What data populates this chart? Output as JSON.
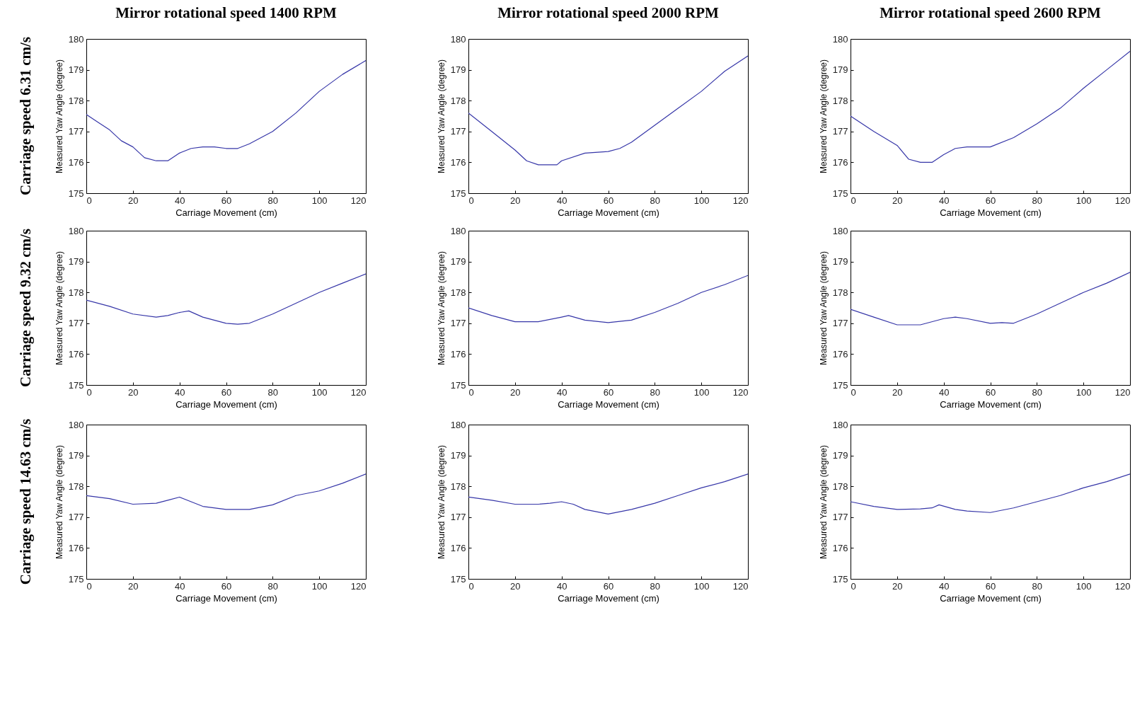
{
  "chart_data": [
    {
      "type": "line",
      "title": "Mirror rotational speed 1400 RPM",
      "annotations": [
        "Carriage speed 6.31 cm/s"
      ],
      "xlabel": "Carriage Movement (cm)",
      "ylabel": "Measured Yaw Angle (degree)",
      "xlim": [
        0,
        120
      ],
      "xticks": [
        0,
        20,
        40,
        60,
        80,
        100,
        120
      ],
      "ylim": [
        175,
        180
      ],
      "yticks": [
        175,
        176,
        177,
        178,
        179,
        180
      ],
      "series": [
        {
          "color": "#3636a8",
          "x": [
            0,
            5,
            10,
            15,
            20,
            25,
            30,
            35,
            40,
            45,
            50,
            55,
            60,
            65,
            70,
            80,
            90,
            100,
            110,
            120
          ],
          "values": [
            177.55,
            177.3,
            177.05,
            176.7,
            176.5,
            176.15,
            176.05,
            176.05,
            176.3,
            176.45,
            176.5,
            176.5,
            176.45,
            176.45,
            176.6,
            177.0,
            177.6,
            178.3,
            178.85,
            179.3
          ]
        }
      ]
    },
    {
      "type": "line",
      "title": "Mirror rotational speed 2000 RPM",
      "xlabel": "Carriage Movement (cm)",
      "ylabel": "Measured Yaw Angle (degree)",
      "xlim": [
        0,
        120
      ],
      "xticks": [
        0,
        20,
        40,
        60,
        80,
        100,
        120
      ],
      "ylim": [
        175,
        180
      ],
      "yticks": [
        175,
        176,
        177,
        178,
        179,
        180
      ],
      "series": [
        {
          "color": "#3636a8",
          "x": [
            0,
            10,
            20,
            25,
            30,
            38,
            40,
            50,
            60,
            65,
            70,
            80,
            90,
            100,
            110,
            120
          ],
          "values": [
            177.6,
            177.0,
            176.4,
            176.05,
            175.92,
            175.92,
            176.05,
            176.3,
            176.35,
            176.45,
            176.65,
            177.2,
            177.75,
            178.3,
            178.95,
            179.45
          ]
        }
      ]
    },
    {
      "type": "line",
      "title": "Mirror rotational speed 2600 RPM",
      "xlabel": "Carriage Movement (cm)",
      "ylabel": "Measured Yaw Angle (degree)",
      "xlim": [
        0,
        120
      ],
      "xticks": [
        0,
        20,
        40,
        60,
        80,
        100,
        120
      ],
      "ylim": [
        175,
        180
      ],
      "yticks": [
        175,
        176,
        177,
        178,
        179,
        180
      ],
      "series": [
        {
          "color": "#3636a8",
          "x": [
            0,
            10,
            20,
            25,
            30,
            35,
            40,
            45,
            50,
            60,
            70,
            80,
            90,
            100,
            110,
            120
          ],
          "values": [
            177.5,
            177.0,
            176.55,
            176.1,
            176.0,
            176.0,
            176.25,
            176.45,
            176.5,
            176.5,
            176.8,
            177.25,
            177.75,
            178.4,
            179.0,
            179.6
          ]
        }
      ]
    },
    {
      "type": "line",
      "annotations": [
        "Carriage speed 9.32 cm/s"
      ],
      "xlabel": "Carriage Movement (cm)",
      "ylabel": "Measured Yaw Angle (degree)",
      "xlim": [
        0,
        120
      ],
      "xticks": [
        0,
        20,
        40,
        60,
        80,
        100,
        120
      ],
      "ylim": [
        175,
        180
      ],
      "yticks": [
        175,
        176,
        177,
        178,
        179,
        180
      ],
      "series": [
        {
          "color": "#3636a8",
          "x": [
            0,
            10,
            20,
            30,
            35,
            40,
            44,
            50,
            60,
            65,
            70,
            80,
            90,
            100,
            110,
            120
          ],
          "values": [
            177.75,
            177.55,
            177.3,
            177.2,
            177.25,
            177.35,
            177.4,
            177.2,
            177.0,
            176.97,
            177.0,
            177.3,
            177.65,
            178.0,
            178.3,
            178.6
          ]
        }
      ]
    },
    {
      "type": "line",
      "xlabel": "Carriage Movement (cm)",
      "ylabel": "Measured Yaw Angle (degree)",
      "xlim": [
        0,
        120
      ],
      "xticks": [
        0,
        20,
        40,
        60,
        80,
        100,
        120
      ],
      "ylim": [
        175,
        180
      ],
      "yticks": [
        175,
        176,
        177,
        178,
        179,
        180
      ],
      "series": [
        {
          "color": "#3636a8",
          "x": [
            0,
            10,
            20,
            30,
            40,
            43,
            50,
            60,
            70,
            80,
            90,
            100,
            110,
            120
          ],
          "values": [
            177.5,
            177.25,
            177.05,
            177.05,
            177.2,
            177.25,
            177.1,
            177.02,
            177.1,
            177.35,
            177.65,
            178.0,
            178.25,
            178.55
          ]
        }
      ]
    },
    {
      "type": "line",
      "xlabel": "Carriage Movement (cm)",
      "ylabel": "Measured Yaw Angle (degree)",
      "xlim": [
        0,
        120
      ],
      "xticks": [
        0,
        20,
        40,
        60,
        80,
        100,
        120
      ],
      "ylim": [
        175,
        180
      ],
      "yticks": [
        175,
        176,
        177,
        178,
        179,
        180
      ],
      "series": [
        {
          "color": "#3636a8",
          "x": [
            0,
            10,
            20,
            30,
            40,
            45,
            50,
            60,
            65,
            70,
            80,
            90,
            100,
            110,
            120
          ],
          "values": [
            177.45,
            177.2,
            176.95,
            176.95,
            177.15,
            177.2,
            177.15,
            177.0,
            177.02,
            177.0,
            177.3,
            177.65,
            178.0,
            178.3,
            178.65
          ]
        }
      ]
    },
    {
      "type": "line",
      "annotations": [
        "Carriage speed 14.63 cm/s"
      ],
      "xlabel": "Carriage Movement (cm)",
      "ylabel": "Measured Yaw Angle (degree)",
      "xlim": [
        0,
        120
      ],
      "xticks": [
        0,
        20,
        40,
        60,
        80,
        100,
        120
      ],
      "ylim": [
        175,
        180
      ],
      "yticks": [
        175,
        176,
        177,
        178,
        179,
        180
      ],
      "series": [
        {
          "color": "#3636a8",
          "x": [
            0,
            10,
            20,
            30,
            35,
            40,
            45,
            50,
            60,
            70,
            80,
            90,
            100,
            110,
            120
          ],
          "values": [
            177.7,
            177.6,
            177.42,
            177.45,
            177.55,
            177.65,
            177.5,
            177.35,
            177.25,
            177.25,
            177.4,
            177.7,
            177.85,
            178.1,
            178.4
          ]
        }
      ]
    },
    {
      "type": "line",
      "xlabel": "Carriage Movement (cm)",
      "ylabel": "Measured Yaw Angle (degree)",
      "xlim": [
        0,
        120
      ],
      "xticks": [
        0,
        20,
        40,
        60,
        80,
        100,
        120
      ],
      "ylim": [
        175,
        180
      ],
      "yticks": [
        175,
        176,
        177,
        178,
        179,
        180
      ],
      "series": [
        {
          "color": "#3636a8",
          "x": [
            0,
            10,
            20,
            30,
            35,
            40,
            45,
            50,
            60,
            70,
            80,
            90,
            100,
            110,
            120
          ],
          "values": [
            177.65,
            177.55,
            177.42,
            177.42,
            177.45,
            177.5,
            177.42,
            177.25,
            177.1,
            177.25,
            177.45,
            177.7,
            177.95,
            178.15,
            178.4
          ]
        }
      ]
    },
    {
      "type": "line",
      "xlabel": "Carriage Movement (cm)",
      "ylabel": "Measured Yaw Angle (degree)",
      "xlim": [
        0,
        120
      ],
      "xticks": [
        0,
        20,
        40,
        60,
        80,
        100,
        120
      ],
      "ylim": [
        175,
        180
      ],
      "yticks": [
        175,
        176,
        177,
        178,
        179,
        180
      ],
      "series": [
        {
          "color": "#3636a8",
          "x": [
            0,
            10,
            20,
            30,
            35,
            38,
            45,
            50,
            60,
            70,
            80,
            90,
            100,
            110,
            120
          ],
          "values": [
            177.5,
            177.35,
            177.25,
            177.27,
            177.3,
            177.4,
            177.25,
            177.2,
            177.15,
            177.3,
            177.5,
            177.7,
            177.95,
            178.15,
            178.4
          ]
        }
      ]
    }
  ]
}
